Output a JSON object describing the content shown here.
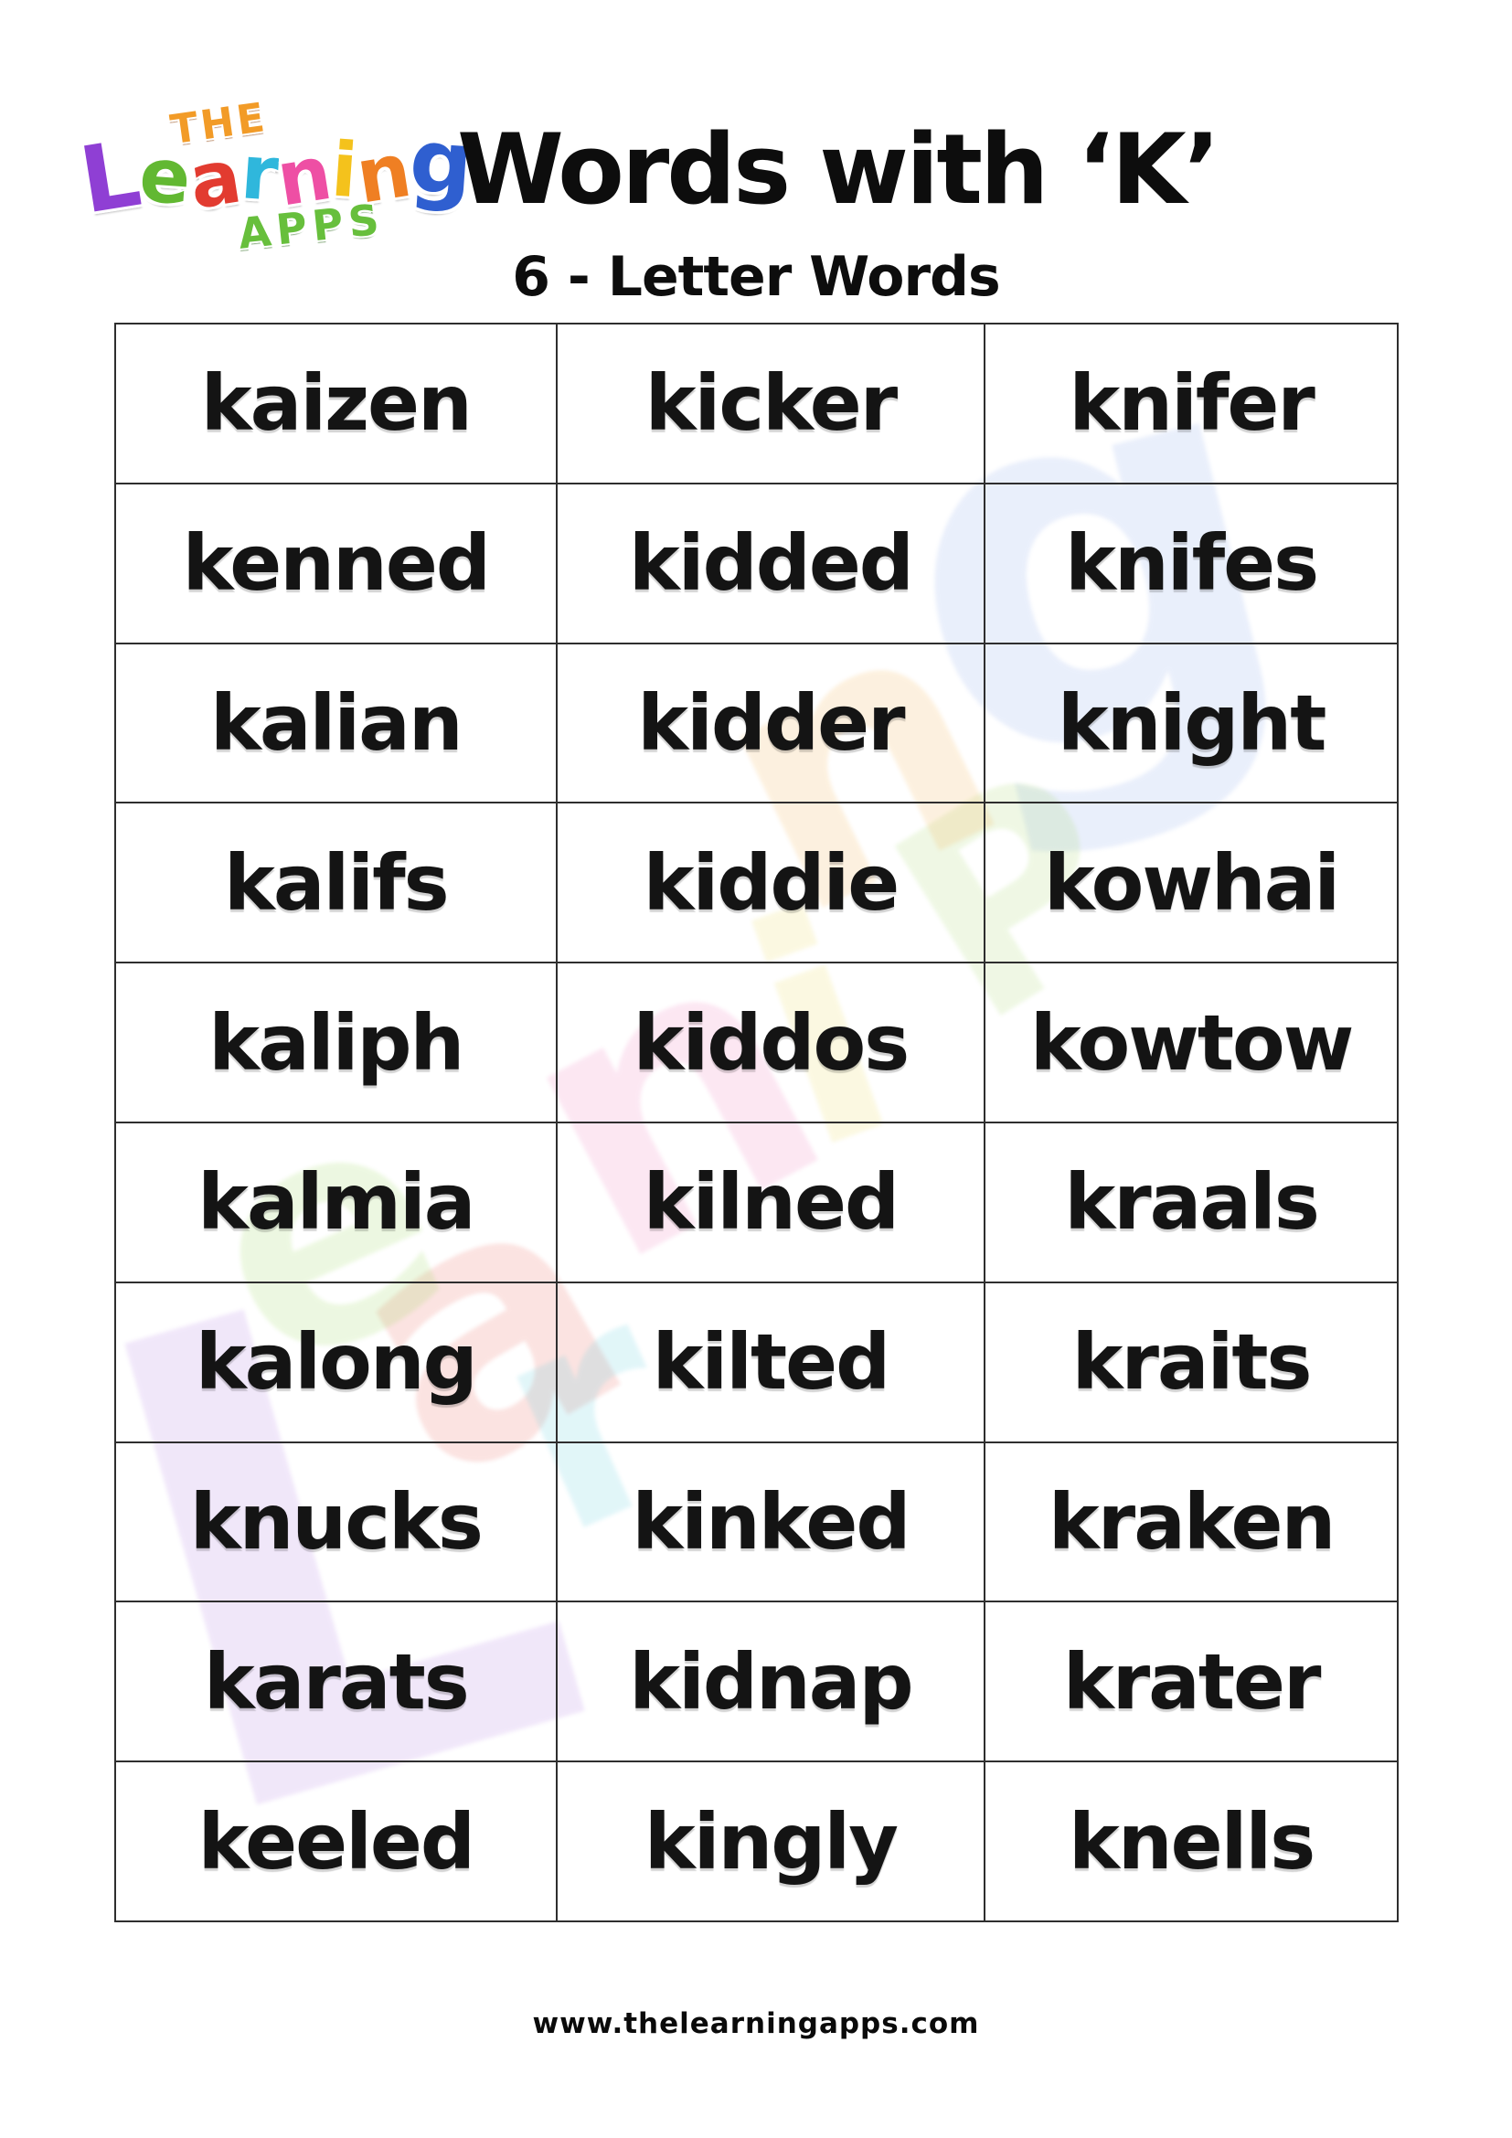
{
  "page": {
    "title": "Words with ‘K’",
    "subtitle": "6 - Letter Words",
    "footer_url": "www.thelearningapps.com",
    "background": "#ffffff",
    "text_color": "#111111",
    "table_border_color": "#2e2e2e"
  },
  "logo": {
    "top_word": "THE",
    "top_word_color": "#f29b27",
    "main_word_letters": [
      {
        "ch": "L",
        "color": "#8f3fd4"
      },
      {
        "ch": "e",
        "color": "#62b832"
      },
      {
        "ch": "a",
        "color": "#e23b30"
      },
      {
        "ch": "r",
        "color": "#2fb7dc"
      },
      {
        "ch": "n",
        "color": "#ee4fa4"
      },
      {
        "ch": "i",
        "color": "#f4c21c"
      },
      {
        "ch": "n",
        "color": "#ef7f23"
      },
      {
        "ch": "g",
        "color": "#2f5fd0"
      }
    ],
    "bottom_word": "APPS",
    "bottom_word_color": "#67bf3c"
  },
  "watermark_letters": [
    {
      "ch": "g",
      "color": "#7d9fe8"
    },
    {
      "ch": "P",
      "color": "#9fd45e"
    },
    {
      "ch": "n",
      "color": "#f2a93c"
    },
    {
      "ch": "i",
      "color": "#ead84e"
    },
    {
      "ch": "n",
      "color": "#ee6fb4"
    },
    {
      "ch": "a",
      "color": "#e8564a"
    },
    {
      "ch": "e",
      "color": "#8fd44a"
    },
    {
      "ch": "r",
      "color": "#4ec9da"
    },
    {
      "ch": "L",
      "color": "#a96fe0"
    }
  ],
  "table": {
    "columns": 3,
    "rows": [
      [
        "kaizen",
        "kicker",
        "knifer"
      ],
      [
        "kenned",
        "kidded",
        "knifes"
      ],
      [
        "kalian",
        "kidder",
        "knight"
      ],
      [
        "kalifs",
        "kiddie",
        "kowhai"
      ],
      [
        "kaliph",
        "kiddos",
        "kowtow"
      ],
      [
        "kalmia",
        "kilned",
        "kraals"
      ],
      [
        "kalong",
        "kilted",
        "kraits"
      ],
      [
        "knucks",
        "kinked",
        "kraken"
      ],
      [
        "karats",
        "kidnap",
        "krater"
      ],
      [
        "keeled",
        "kingly",
        "knells"
      ]
    ]
  }
}
